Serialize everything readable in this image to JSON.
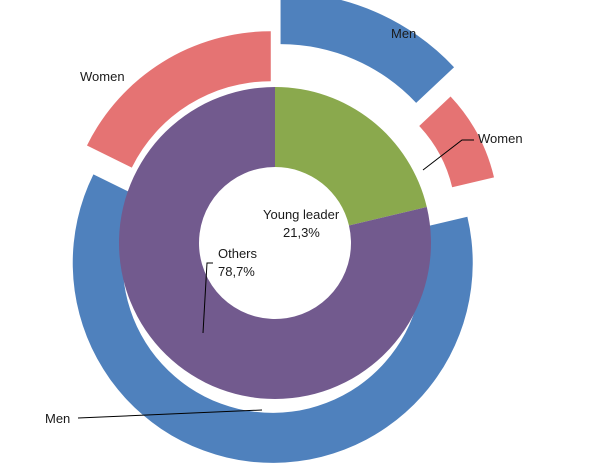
{
  "chart_data": {
    "type": "pie",
    "title": "",
    "rings": [
      {
        "name": "inner",
        "slices": [
          {
            "label": "Young leader",
            "value_label": "21,3%",
            "value": 21.3,
            "color": "#8aa94d"
          },
          {
            "label": "Others",
            "value_label": "78,7%",
            "value": 78.7,
            "color": "#725a8e"
          }
        ]
      },
      {
        "name": "outer",
        "slices": [
          {
            "group": "Young leader",
            "label": "Men",
            "value": 13.0,
            "color": "#4f81bd"
          },
          {
            "group": "Young leader",
            "label": "Women",
            "value": 8.3,
            "color": "#e57373"
          },
          {
            "group": "Others",
            "label": "Men",
            "value": 61.0,
            "color": "#4f81bd"
          },
          {
            "group": "Others",
            "label": "Women",
            "value": 17.7,
            "color": "#e57373"
          }
        ]
      }
    ],
    "colors": {
      "men": "#4f81bd",
      "women": "#e57373",
      "young_leader": "#8aa94d",
      "others": "#725a8e"
    }
  }
}
